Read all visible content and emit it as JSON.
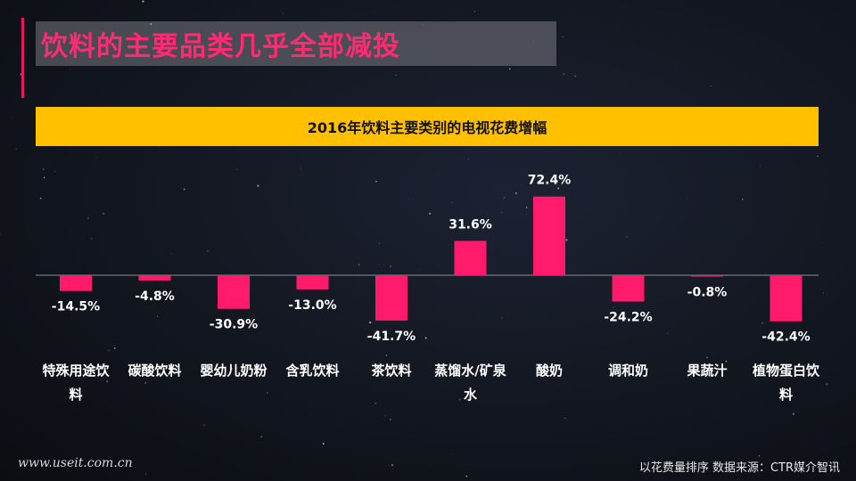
{
  "page": {
    "title": "饮料的主要品类几乎全部减投",
    "footer_left": "www.useit.com.cn",
    "footer_right": "以花费量排序    数据来源：CTR媒介智讯"
  },
  "colors": {
    "bar": "#ff1a6b",
    "banner": "#ffc000",
    "title": "#ff2a72"
  },
  "chart_data": {
    "type": "bar",
    "title": "2016年饮料主要类别的电视花费增幅",
    "categories": [
      "特殊用途饮料",
      "碳酸饮料",
      "婴幼儿奶粉",
      "含乳饮料",
      "茶饮料",
      "蒸馏水/矿泉水",
      "酸奶",
      "调和奶",
      "果蔬汁",
      "植物蛋白饮料"
    ],
    "values": [
      -14.5,
      -4.8,
      -30.9,
      -13.0,
      -41.7,
      31.6,
      72.4,
      -24.2,
      -0.8,
      -42.4
    ],
    "value_labels": [
      "-14.5%",
      "-4.8%",
      "-30.9%",
      "-13.0%",
      "-41.7%",
      "31.6%",
      "72.4%",
      "-24.2%",
      "-0.8%",
      "-42.4%"
    ],
    "grid": false,
    "legend": "none"
  }
}
